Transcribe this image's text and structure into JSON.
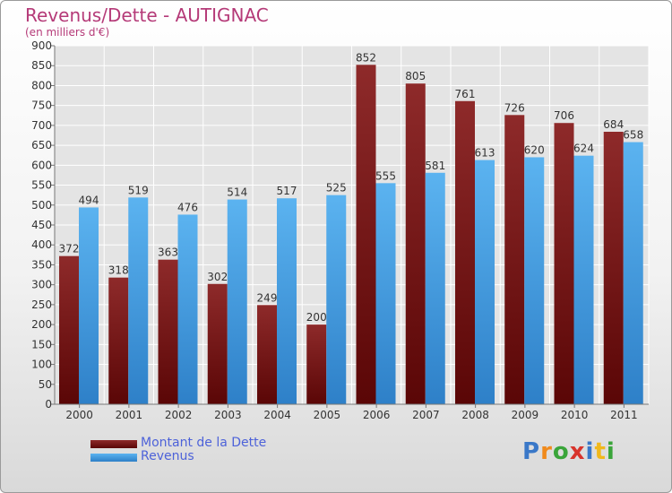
{
  "chart_data": {
    "type": "bar",
    "title": "Revenus/Dette - AUTIGNAC",
    "subtitle": "(en milliers d'€)",
    "categories": [
      "2000",
      "2001",
      "2002",
      "2003",
      "2004",
      "2005",
      "2006",
      "2007",
      "2008",
      "2009",
      "2010",
      "2011"
    ],
    "series": [
      {
        "name": "Montant de la Dette",
        "color": "#7a1a1a",
        "values": [
          372,
          318,
          363,
          302,
          249,
          200,
          852,
          805,
          761,
          726,
          706,
          684
        ]
      },
      {
        "name": "Revenus",
        "color": "#4aa3e6",
        "values": [
          494,
          519,
          476,
          514,
          517,
          525,
          555,
          581,
          613,
          620,
          624,
          658
        ]
      }
    ],
    "ylim": [
      0,
      900
    ],
    "yticks": [
      0,
      50,
      100,
      150,
      200,
      250,
      300,
      350,
      400,
      450,
      500,
      550,
      600,
      650,
      700,
      750,
      800,
      850,
      900
    ],
    "grid": true,
    "legend": "bottom-left"
  },
  "branding": {
    "logo_letters": [
      {
        "ch": "P",
        "color": "#3a78c8"
      },
      {
        "ch": "r",
        "color": "#f08a1c"
      },
      {
        "ch": "o",
        "color": "#3aa53a"
      },
      {
        "ch": "x",
        "color": "#d8342c"
      },
      {
        "ch": "i",
        "color": "#3a78c8"
      },
      {
        "ch": "t",
        "color": "#f0b81c"
      },
      {
        "ch": "i",
        "color": "#3aa53a"
      }
    ]
  }
}
